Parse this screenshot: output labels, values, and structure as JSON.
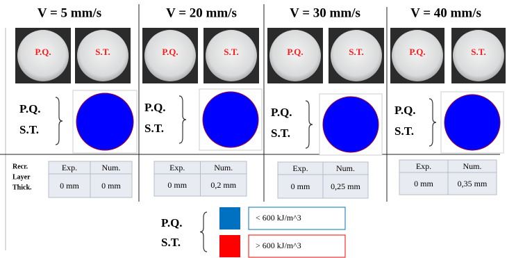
{
  "columns": [
    {
      "title": "V = 5 mm/s",
      "photo_labels": [
        "P.Q.",
        "S.T."
      ],
      "sim_labels": [
        "P.Q.",
        "S.T."
      ],
      "table": {
        "headers": [
          "Exp.",
          "Num."
        ],
        "values": [
          "0 mm",
          "0 mm"
        ]
      }
    },
    {
      "title": "V = 20 mm/s",
      "photo_labels": [
        "P.Q.",
        "S.T."
      ],
      "sim_labels": [
        "P.Q.",
        "S.T."
      ],
      "table": {
        "headers": [
          "Exp.",
          "Num."
        ],
        "values": [
          "0 mm",
          "0,2 mm"
        ]
      }
    },
    {
      "title": "V = 30 mm/s",
      "photo_labels": [
        "P.Q.",
        "S.T."
      ],
      "sim_labels": [
        "P.Q.",
        "S.T."
      ],
      "table": {
        "headers": [
          "Exp.",
          "Num."
        ],
        "values": [
          "0 mm",
          "0,25 mm"
        ]
      }
    },
    {
      "title": "V = 40 mm/s",
      "photo_labels": [
        "P.Q.",
        "S.T."
      ],
      "sim_labels": [
        "P.Q.",
        "S.T."
      ],
      "table": {
        "headers": [
          "Exp.",
          "Num."
        ],
        "values": [
          "0 mm",
          "0,35 mm"
        ]
      }
    }
  ],
  "row_label": [
    "Recr.",
    "Layer",
    "Thick."
  ],
  "legend": {
    "labels": [
      "P.Q.",
      "S.T."
    ],
    "items": [
      {
        "label": "< 600 kJ/m^3",
        "color": "#0070c0"
      },
      {
        "label": "> 600 kJ/m^3",
        "color": "#ff0000"
      }
    ]
  }
}
